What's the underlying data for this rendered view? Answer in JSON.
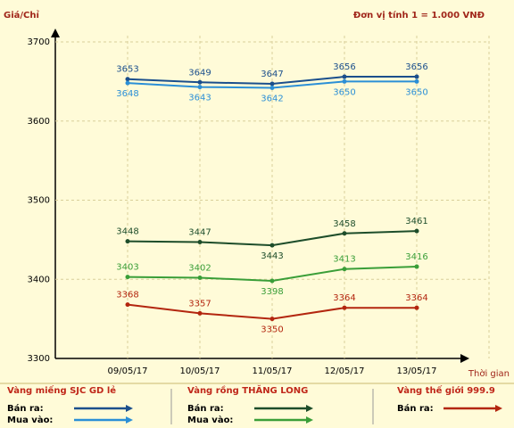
{
  "chart_data": {
    "type": "line",
    "y_label": "Giá/Chỉ",
    "unit_note": "Đơn vị tính 1 = 1.000 VNĐ",
    "x_label": "Thời gian",
    "categories": [
      "09/05/17",
      "10/05/17",
      "11/05/17",
      "12/05/17",
      "13/05/17"
    ],
    "ylim": [
      3300,
      3700
    ],
    "yticks": [
      3300,
      3400,
      3500,
      3600,
      3700
    ],
    "grid": true,
    "groups": [
      {
        "title": "Vàng miếng SJC GD lẻ",
        "series": [
          {
            "name": "Bán ra:",
            "color": "#1b4f8c",
            "values": [
              3653,
              3649,
              3647,
              3656,
              3656
            ]
          },
          {
            "name": "Mua vào:",
            "color": "#2b8fd6",
            "values": [
              3648,
              3643,
              3642,
              3650,
              3650
            ]
          }
        ]
      },
      {
        "title": "Vàng rồng THĂNG LONG",
        "series": [
          {
            "name": "Bán ra:",
            "color": "#1d4d2a",
            "values": [
              3448,
              3447,
              3443,
              3458,
              3461
            ]
          },
          {
            "name": "Mua vào:",
            "color": "#3a9e38",
            "values": [
              3403,
              3402,
              3398,
              3413,
              3416
            ]
          }
        ]
      },
      {
        "title": "Vàng thế giới 999.9",
        "series": [
          {
            "name": "Bán ra:",
            "color": "#b3260f",
            "values": [
              3368,
              3357,
              3350,
              3364,
              3364
            ]
          }
        ]
      }
    ]
  }
}
